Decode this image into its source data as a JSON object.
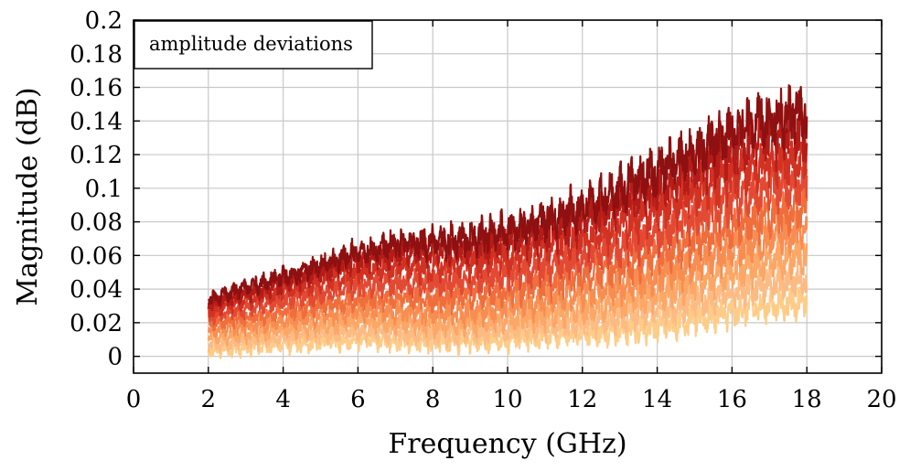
{
  "chart_data": {
    "type": "line",
    "xlabel": "Frequency (GHz)",
    "ylabel": "Magnitude (dB)",
    "xlim": [
      0,
      20
    ],
    "ylim": [
      -0.01,
      0.2
    ],
    "xticks": [
      "0",
      "2",
      "4",
      "6",
      "8",
      "10",
      "12",
      "14",
      "16",
      "18",
      "20"
    ],
    "yticks": [
      "0",
      "0.02",
      "0.04",
      "0.06",
      "0.08",
      "0.1",
      "0.12",
      "0.14",
      "0.16",
      "0.18",
      "0.2"
    ],
    "grid": true,
    "legend_label": "amplitude deviations",
    "legend_position": "top-left",
    "series_palette": [
      "#ffcc88",
      "#fdbb84",
      "#fca766",
      "#f88d52",
      "#ef6e3c",
      "#e34a33",
      "#d23222",
      "#b51c18",
      "#8e1010"
    ],
    "x": [
      2,
      3,
      4,
      5,
      6,
      7,
      8,
      9,
      10,
      11,
      12,
      13,
      14,
      15,
      16,
      16.3,
      17,
      18
    ],
    "series": [
      {
        "values": [
          0.003,
          0.005,
          0.007,
          0.008,
          0.01,
          0.009,
          0.008,
          0.009,
          0.01,
          0.012,
          0.013,
          0.015,
          0.018,
          0.022,
          0.026,
          0.028,
          0.03,
          0.033
        ]
      },
      {
        "values": [
          0.007,
          0.009,
          0.011,
          0.013,
          0.015,
          0.014,
          0.013,
          0.014,
          0.015,
          0.017,
          0.02,
          0.023,
          0.027,
          0.032,
          0.037,
          0.04,
          0.043,
          0.046
        ]
      },
      {
        "values": [
          0.011,
          0.013,
          0.016,
          0.018,
          0.021,
          0.02,
          0.019,
          0.02,
          0.022,
          0.025,
          0.028,
          0.032,
          0.037,
          0.043,
          0.05,
          0.053,
          0.056,
          0.06
        ]
      },
      {
        "values": [
          0.015,
          0.018,
          0.021,
          0.024,
          0.027,
          0.027,
          0.026,
          0.027,
          0.03,
          0.033,
          0.037,
          0.042,
          0.048,
          0.055,
          0.063,
          0.066,
          0.07,
          0.074
        ]
      },
      {
        "values": [
          0.019,
          0.023,
          0.027,
          0.03,
          0.034,
          0.035,
          0.034,
          0.036,
          0.039,
          0.043,
          0.047,
          0.053,
          0.06,
          0.068,
          0.077,
          0.08,
          0.084,
          0.088
        ]
      },
      {
        "values": [
          0.023,
          0.028,
          0.033,
          0.037,
          0.042,
          0.044,
          0.043,
          0.045,
          0.049,
          0.053,
          0.058,
          0.065,
          0.073,
          0.082,
          0.092,
          0.095,
          0.099,
          0.103
        ]
      },
      {
        "values": [
          0.027,
          0.033,
          0.038,
          0.044,
          0.05,
          0.053,
          0.053,
          0.055,
          0.059,
          0.064,
          0.07,
          0.078,
          0.087,
          0.097,
          0.108,
          0.111,
          0.115,
          0.118
        ]
      },
      {
        "values": [
          0.031,
          0.037,
          0.043,
          0.05,
          0.057,
          0.061,
          0.062,
          0.064,
          0.068,
          0.074,
          0.081,
          0.09,
          0.1,
          0.111,
          0.123,
          0.126,
          0.13,
          0.132
        ]
      },
      {
        "values": [
          0.034,
          0.041,
          0.047,
          0.054,
          0.062,
          0.067,
          0.068,
          0.07,
          0.075,
          0.081,
          0.089,
          0.099,
          0.11,
          0.122,
          0.134,
          0.138,
          0.142,
          0.144
        ]
      }
    ]
  }
}
